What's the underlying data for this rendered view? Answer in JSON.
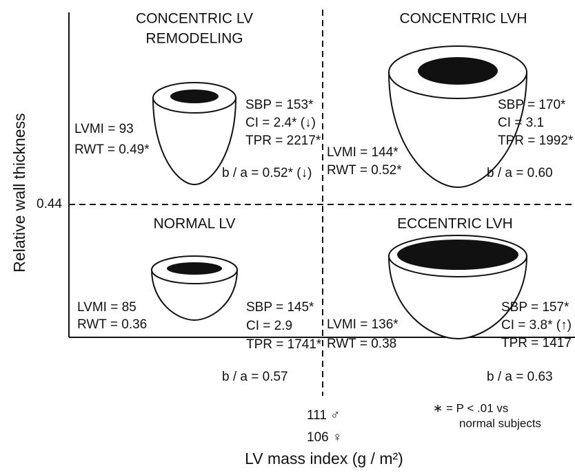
{
  "axes": {
    "y_label": "Relative wall thickness",
    "x_label": "LV mass index (g / m²)",
    "threshold_y": "0.44",
    "threshold_x": [
      "111 ♂",
      "106 ♀"
    ]
  },
  "legend": [
    "∗ = P < .01 vs",
    "normal subjects"
  ],
  "quadrants": [
    {
      "title": [
        "CONCENTRIC LV",
        "REMODELING"
      ],
      "left": [
        "LVMI = 93",
        "RWT = 0.49*"
      ],
      "right": [
        "SBP = 153*",
        "CI = 2.4* (↓)",
        "TPR = 2217*"
      ],
      "ratio": "b / a = 0.52* (↓)"
    },
    {
      "title": [
        "CONCENTRIC LVH"
      ],
      "left": [
        "LVMI = 144*",
        "RWT = 0.52*"
      ],
      "right": [
        "SBP = 170*",
        "CI = 3.1",
        "TPR = 1992*"
      ],
      "ratio": "b / a = 0.60"
    },
    {
      "title": [
        "NORMAL LV"
      ],
      "left": [
        "LVMI = 85",
        "RWT = 0.36"
      ],
      "right": [
        "SBP = 145*",
        "CI = 2.9",
        "TPR = 1741*"
      ],
      "ratio": "b / a = 0.57"
    },
    {
      "title": [
        "ECCENTRIC LVH"
      ],
      "left": [
        "LVMI = 136*",
        "RWT = 0.38"
      ],
      "right": [
        "SBP = 157*",
        "CI = 3.8* (↑)",
        "TPR = 1417"
      ],
      "ratio": "b / a = 0.63"
    }
  ]
}
